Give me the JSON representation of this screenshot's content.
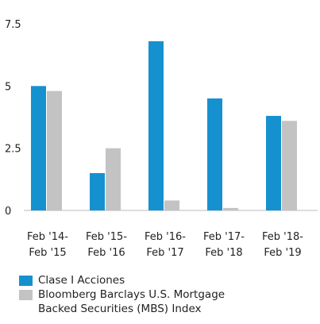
{
  "chart_data": {
    "type": "bar",
    "categories": [
      [
        "Feb '14-",
        "Feb '15"
      ],
      [
        "Feb '15-",
        "Feb '16"
      ],
      [
        "Feb '16-",
        "Feb '17"
      ],
      [
        "Feb '17-",
        "Feb '18"
      ],
      [
        "Feb '18-",
        "Feb '19"
      ]
    ],
    "series": [
      {
        "name": "Clase I Acciones",
        "color": "#1591cf",
        "values": [
          5.0,
          1.5,
          6.8,
          4.5,
          3.8
        ]
      },
      {
        "name": "Bloomberg Barclays U.S. Mortgage Backed Securities (MBS) Index",
        "color": "#c3c3c3",
        "values": [
          4.8,
          2.5,
          0.4,
          0.1,
          3.6
        ]
      }
    ],
    "ylim": [
      0,
      7.5
    ],
    "yticks": [
      0,
      2.5,
      5,
      7.5
    ]
  }
}
